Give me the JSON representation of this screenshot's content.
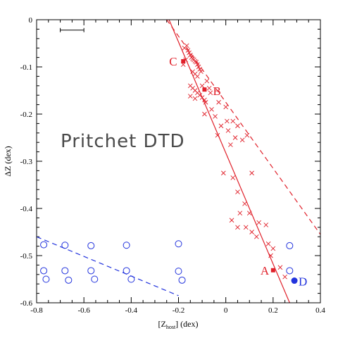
{
  "colors": {
    "red": "#e0202a",
    "blue": "#2233dd",
    "axis": "#000000",
    "annotation": "#4a4a4a"
  },
  "chart_data": {
    "type": "scatter",
    "title": "",
    "annotation": "Pritchet DTD",
    "xlabel": "[Z_host] (dex)",
    "xlabel_main": "[Z",
    "xlabel_sub": "host",
    "xlabel_tail": "] (dex)",
    "ylabel": "ΔZ (dex)",
    "xlim": [
      -0.8,
      0.4
    ],
    "ylim": [
      -0.6,
      0
    ],
    "grid": false,
    "x_ticks": [
      {
        "value": -0.8,
        "label": "-0.8"
      },
      {
        "value": -0.6,
        "label": "-0.6"
      },
      {
        "value": -0.4,
        "label": "-0.4"
      },
      {
        "value": -0.2,
        "label": "-0.2"
      },
      {
        "value": 0,
        "label": "0"
      },
      {
        "value": 0.2,
        "label": "0.2"
      },
      {
        "value": 0.4,
        "label": "0.4"
      }
    ],
    "y_ticks": [
      {
        "value": 0,
        "label": "0"
      },
      {
        "value": -0.1,
        "label": "-0.1"
      },
      {
        "value": -0.2,
        "label": "-0.2"
      },
      {
        "value": -0.3,
        "label": "-0.3"
      },
      {
        "value": -0.4,
        "label": "-0.4"
      },
      {
        "value": -0.5,
        "label": "-0.5"
      },
      {
        "value": -0.6,
        "label": "-0.6"
      }
    ],
    "x_minor_step": 0.05,
    "y_minor_step": 0.02,
    "scale_bar": {
      "x_start": -0.7,
      "x_end": -0.6,
      "y": -0.022
    },
    "series": [
      {
        "marker": "cross",
        "color": "#e0202a",
        "points": [
          [
            -0.18,
            -0.095
          ],
          [
            -0.17,
            -0.085
          ],
          [
            -0.175,
            -0.06
          ],
          [
            -0.165,
            -0.055
          ],
          [
            -0.16,
            -0.065
          ],
          [
            -0.155,
            -0.07
          ],
          [
            -0.15,
            -0.075
          ],
          [
            -0.145,
            -0.08
          ],
          [
            -0.14,
            -0.083
          ],
          [
            -0.135,
            -0.085
          ],
          [
            -0.13,
            -0.088
          ],
          [
            -0.125,
            -0.09
          ],
          [
            -0.12,
            -0.095
          ],
          [
            -0.115,
            -0.1
          ],
          [
            -0.11,
            -0.105
          ],
          [
            -0.105,
            -0.11
          ],
          [
            -0.14,
            -0.11
          ],
          [
            -0.13,
            -0.115
          ],
          [
            -0.12,
            -0.12
          ],
          [
            -0.15,
            -0.14
          ],
          [
            -0.14,
            -0.145
          ],
          [
            -0.13,
            -0.15
          ],
          [
            -0.12,
            -0.155
          ],
          [
            -0.11,
            -0.16
          ],
          [
            -0.1,
            -0.165
          ],
          [
            -0.09,
            -0.17
          ],
          [
            -0.15,
            -0.162
          ],
          [
            -0.13,
            -0.167
          ],
          [
            -0.1,
            -0.14
          ],
          [
            -0.08,
            -0.13
          ],
          [
            -0.07,
            -0.145
          ],
          [
            -0.065,
            -0.155
          ],
          [
            -0.085,
            -0.175
          ],
          [
            -0.06,
            -0.19
          ],
          [
            -0.09,
            -0.2
          ],
          [
            -0.03,
            -0.175
          ],
          [
            -0.045,
            -0.205
          ],
          [
            -0.02,
            -0.225
          ],
          [
            0.0,
            -0.185
          ],
          [
            0.005,
            -0.215
          ],
          [
            -0.035,
            -0.245
          ],
          [
            0.01,
            -0.235
          ],
          [
            0.03,
            -0.215
          ],
          [
            0.05,
            -0.225
          ],
          [
            0.04,
            -0.25
          ],
          [
            0.02,
            -0.265
          ],
          [
            0.07,
            -0.255
          ],
          [
            0.09,
            -0.245
          ],
          [
            -0.01,
            -0.325
          ],
          [
            0.03,
            -0.335
          ],
          [
            0.11,
            -0.325
          ],
          [
            0.05,
            -0.365
          ],
          [
            0.08,
            -0.39
          ],
          [
            0.06,
            -0.41
          ],
          [
            0.1,
            -0.41
          ],
          [
            0.025,
            -0.425
          ],
          [
            0.05,
            -0.44
          ],
          [
            0.085,
            -0.44
          ],
          [
            0.11,
            -0.45
          ],
          [
            0.14,
            -0.43
          ],
          [
            0.17,
            -0.435
          ],
          [
            0.13,
            -0.46
          ],
          [
            0.18,
            -0.475
          ],
          [
            0.2,
            -0.485
          ],
          [
            0.19,
            -0.5
          ],
          [
            0.23,
            -0.525
          ],
          [
            0.25,
            -0.545
          ]
        ]
      },
      {
        "marker": "open-circle",
        "color": "#2233dd",
        "points": [
          [
            -0.77,
            -0.477
          ],
          [
            -0.68,
            -0.478
          ],
          [
            -0.57,
            -0.479
          ],
          [
            -0.42,
            -0.478
          ],
          [
            -0.2,
            -0.475
          ],
          [
            0.27,
            -0.479
          ],
          [
            -0.77,
            -0.532
          ],
          [
            -0.68,
            -0.532
          ],
          [
            -0.57,
            -0.532
          ],
          [
            -0.42,
            -0.532
          ],
          [
            -0.2,
            -0.533
          ],
          [
            0.27,
            -0.532
          ],
          [
            -0.76,
            -0.55
          ],
          [
            -0.665,
            -0.552
          ],
          [
            -0.555,
            -0.55
          ],
          [
            -0.4,
            -0.55
          ],
          [
            -0.185,
            -0.552
          ]
        ]
      }
    ],
    "labeled_points": [
      {
        "label": "A",
        "x": 0.2,
        "y": -0.531,
        "marker": "filled-square",
        "color": "#e0202a"
      },
      {
        "label": "B",
        "x": -0.09,
        "y": -0.148,
        "marker": "filled-square",
        "color": "#e0202a"
      },
      {
        "label": "C",
        "x": -0.18,
        "y": -0.088,
        "marker": "filled-square",
        "color": "#e0202a"
      },
      {
        "label": "D",
        "x": 0.29,
        "y": -0.553,
        "marker": "filled-circle",
        "color": "#2233dd"
      }
    ],
    "lines": [
      {
        "style": "solid",
        "color": "#e0202a",
        "points": [
          [
            -0.24,
            0.0
          ],
          [
            0.27,
            -0.6
          ]
        ]
      },
      {
        "style": "dashed",
        "color": "#e0202a",
        "points": [
          [
            -0.25,
            0.0
          ],
          [
            0.4,
            -0.455
          ]
        ]
      },
      {
        "style": "dashed",
        "color": "#2233dd",
        "points": [
          [
            -0.8,
            -0.46
          ],
          [
            -0.2,
            -0.585
          ]
        ]
      }
    ]
  }
}
